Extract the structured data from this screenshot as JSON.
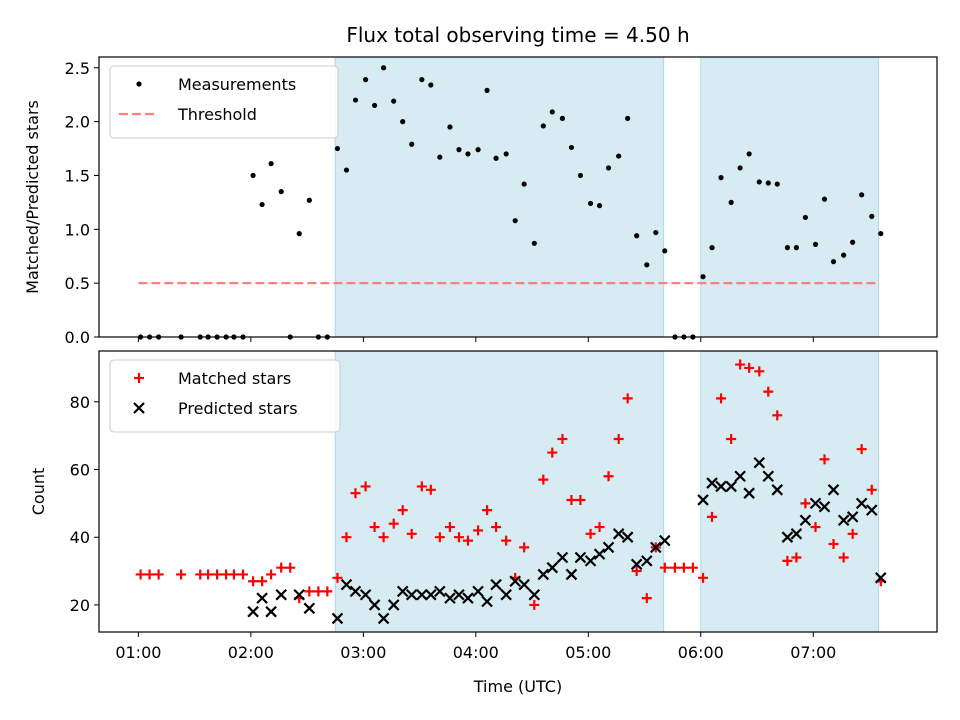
{
  "chart_data": [
    {
      "type": "scatter",
      "title": "Flux total observing time = 4.50 h",
      "xlabel": "",
      "ylabel": "Matched/Predicted stars",
      "xlim": [
        0.65,
        8.1
      ],
      "ylim": [
        0,
        2.6
      ],
      "yticks": [
        0.0,
        0.5,
        1.0,
        1.5,
        2.0,
        2.5
      ],
      "ytick_labels": [
        "0.0",
        "0.5",
        "1.0",
        "1.5",
        "2.0",
        "2.5"
      ],
      "legend_position": "top-left",
      "shaded_intervals": [
        [
          2.75,
          5.67
        ],
        [
          6.0,
          7.58
        ]
      ],
      "threshold": {
        "name": "Threshold",
        "y": 0.5,
        "x": [
          1.0,
          7.58
        ],
        "color": "#ff7f7f",
        "style": "dashed"
      },
      "series": [
        {
          "name": "Measurements",
          "color": "#000000",
          "marker": "dot",
          "points": [
            [
              1.02,
              0
            ],
            [
              1.1,
              0
            ],
            [
              1.18,
              0
            ],
            [
              1.38,
              0
            ],
            [
              1.55,
              0
            ],
            [
              1.62,
              0
            ],
            [
              1.7,
              0
            ],
            [
              1.78,
              0
            ],
            [
              1.85,
              0
            ],
            [
              1.93,
              0
            ],
            [
              2.02,
              1.5
            ],
            [
              2.1,
              1.23
            ],
            [
              2.18,
              1.61
            ],
            [
              2.27,
              1.35
            ],
            [
              2.35,
              0
            ],
            [
              2.43,
              0.96
            ],
            [
              2.52,
              1.27
            ],
            [
              2.6,
              0
            ],
            [
              2.68,
              0
            ],
            [
              2.77,
              1.75
            ],
            [
              2.85,
              1.55
            ],
            [
              2.93,
              2.2
            ],
            [
              3.02,
              2.39
            ],
            [
              3.1,
              2.15
            ],
            [
              3.18,
              2.5
            ],
            [
              3.27,
              2.19
            ],
            [
              3.35,
              2.0
            ],
            [
              3.43,
              1.79
            ],
            [
              3.52,
              2.39
            ],
            [
              3.6,
              2.34
            ],
            [
              3.68,
              1.67
            ],
            [
              3.77,
              1.95
            ],
            [
              3.85,
              1.74
            ],
            [
              3.93,
              1.7
            ],
            [
              4.02,
              1.74
            ],
            [
              4.1,
              2.29
            ],
            [
              4.18,
              1.66
            ],
            [
              4.27,
              1.7
            ],
            [
              4.35,
              1.08
            ],
            [
              4.43,
              1.42
            ],
            [
              4.52,
              0.87
            ],
            [
              4.6,
              1.96
            ],
            [
              4.68,
              2.09
            ],
            [
              4.77,
              2.03
            ],
            [
              4.85,
              1.76
            ],
            [
              4.93,
              1.5
            ],
            [
              5.02,
              1.24
            ],
            [
              5.1,
              1.22
            ],
            [
              5.18,
              1.57
            ],
            [
              5.27,
              1.68
            ],
            [
              5.35,
              2.03
            ],
            [
              5.43,
              0.94
            ],
            [
              5.52,
              0.67
            ],
            [
              5.6,
              0.97
            ],
            [
              5.68,
              0.8
            ],
            [
              5.77,
              0
            ],
            [
              5.85,
              0
            ],
            [
              5.93,
              0
            ],
            [
              6.02,
              0.56
            ],
            [
              6.1,
              0.83
            ],
            [
              6.18,
              1.48
            ],
            [
              6.27,
              1.25
            ],
            [
              6.35,
              1.57
            ],
            [
              6.43,
              1.7
            ],
            [
              6.52,
              1.44
            ],
            [
              6.6,
              1.43
            ],
            [
              6.68,
              1.42
            ],
            [
              6.77,
              0.83
            ],
            [
              6.85,
              0.83
            ],
            [
              6.93,
              1.11
            ],
            [
              7.02,
              0.86
            ],
            [
              7.1,
              1.28
            ],
            [
              7.18,
              0.7
            ],
            [
              7.27,
              0.76
            ],
            [
              7.35,
              0.88
            ],
            [
              7.43,
              1.32
            ],
            [
              7.52,
              1.12
            ],
            [
              7.6,
              0.96
            ]
          ]
        }
      ]
    },
    {
      "type": "scatter",
      "title": "",
      "xlabel": "Time (UTC)",
      "ylabel": "Count",
      "xlim": [
        0.65,
        8.1
      ],
      "ylim": [
        12,
        95
      ],
      "xticks": [
        1,
        2,
        3,
        4,
        5,
        6,
        7
      ],
      "xtick_labels": [
        "01:00",
        "02:00",
        "03:00",
        "04:00",
        "05:00",
        "06:00",
        "07:00"
      ],
      "yticks": [
        20,
        40,
        60,
        80
      ],
      "ytick_labels": [
        "20",
        "40",
        "60",
        "80"
      ],
      "legend_position": "top-left",
      "shaded_intervals": [
        [
          2.75,
          5.67
        ],
        [
          6.0,
          7.58
        ]
      ],
      "series": [
        {
          "name": "Matched stars",
          "color": "#ff0000",
          "marker": "plus",
          "points": [
            [
              1.02,
              29
            ],
            [
              1.1,
              29
            ],
            [
              1.18,
              29
            ],
            [
              1.38,
              29
            ],
            [
              1.55,
              29
            ],
            [
              1.62,
              29
            ],
            [
              1.7,
              29
            ],
            [
              1.78,
              29
            ],
            [
              1.85,
              29
            ],
            [
              1.93,
              29
            ],
            [
              2.02,
              27
            ],
            [
              2.1,
              27
            ],
            [
              2.18,
              29
            ],
            [
              2.27,
              31
            ],
            [
              2.35,
              31
            ],
            [
              2.43,
              22
            ],
            [
              2.52,
              24
            ],
            [
              2.6,
              24
            ],
            [
              2.68,
              24
            ],
            [
              2.77,
              28
            ],
            [
              2.85,
              40
            ],
            [
              2.93,
              53
            ],
            [
              3.02,
              55
            ],
            [
              3.1,
              43
            ],
            [
              3.18,
              40
            ],
            [
              3.27,
              44
            ],
            [
              3.35,
              48
            ],
            [
              3.43,
              41
            ],
            [
              3.52,
              55
            ],
            [
              3.6,
              54
            ],
            [
              3.68,
              40
            ],
            [
              3.77,
              43
            ],
            [
              3.85,
              40
            ],
            [
              3.93,
              39
            ],
            [
              4.02,
              42
            ],
            [
              4.1,
              48
            ],
            [
              4.18,
              43
            ],
            [
              4.27,
              39
            ],
            [
              4.35,
              28
            ],
            [
              4.43,
              37
            ],
            [
              4.52,
              20
            ],
            [
              4.6,
              57
            ],
            [
              4.68,
              65
            ],
            [
              4.77,
              69
            ],
            [
              4.85,
              51
            ],
            [
              4.93,
              51
            ],
            [
              5.02,
              41
            ],
            [
              5.1,
              43
            ],
            [
              5.18,
              58
            ],
            [
              5.27,
              69
            ],
            [
              5.35,
              81
            ],
            [
              5.43,
              30
            ],
            [
              5.52,
              22
            ],
            [
              5.6,
              37
            ],
            [
              5.68,
              31
            ],
            [
              5.77,
              31
            ],
            [
              5.85,
              31
            ],
            [
              5.93,
              31
            ],
            [
              6.02,
              28
            ],
            [
              6.1,
              46
            ],
            [
              6.18,
              81
            ],
            [
              6.27,
              69
            ],
            [
              6.35,
              91
            ],
            [
              6.43,
              90
            ],
            [
              6.52,
              89
            ],
            [
              6.6,
              83
            ],
            [
              6.68,
              76
            ],
            [
              6.77,
              33
            ],
            [
              6.85,
              34
            ],
            [
              6.93,
              50
            ],
            [
              7.02,
              43
            ],
            [
              7.1,
              63
            ],
            [
              7.18,
              38
            ],
            [
              7.27,
              34
            ],
            [
              7.35,
              41
            ],
            [
              7.43,
              66
            ],
            [
              7.52,
              54
            ],
            [
              7.6,
              27
            ]
          ]
        },
        {
          "name": "Predicted stars",
          "color": "#000000",
          "marker": "x",
          "points": [
            [
              2.02,
              18
            ],
            [
              2.1,
              22
            ],
            [
              2.18,
              18
            ],
            [
              2.27,
              23
            ],
            [
              2.43,
              23
            ],
            [
              2.52,
              19
            ],
            [
              2.77,
              16
            ],
            [
              2.85,
              26
            ],
            [
              2.93,
              24
            ],
            [
              3.02,
              23
            ],
            [
              3.1,
              20
            ],
            [
              3.18,
              16
            ],
            [
              3.27,
              20
            ],
            [
              3.35,
              24
            ],
            [
              3.43,
              23
            ],
            [
              3.52,
              23
            ],
            [
              3.6,
              23
            ],
            [
              3.68,
              24
            ],
            [
              3.77,
              22
            ],
            [
              3.85,
              23
            ],
            [
              3.93,
              22
            ],
            [
              4.02,
              24
            ],
            [
              4.1,
              21
            ],
            [
              4.18,
              26
            ],
            [
              4.27,
              23
            ],
            [
              4.35,
              27
            ],
            [
              4.43,
              26
            ],
            [
              4.52,
              23
            ],
            [
              4.6,
              29
            ],
            [
              4.68,
              31
            ],
            [
              4.77,
              34
            ],
            [
              4.85,
              29
            ],
            [
              4.93,
              34
            ],
            [
              5.02,
              33
            ],
            [
              5.1,
              35
            ],
            [
              5.18,
              37
            ],
            [
              5.27,
              41
            ],
            [
              5.35,
              40
            ],
            [
              5.43,
              32
            ],
            [
              5.52,
              33
            ],
            [
              5.6,
              37
            ],
            [
              5.68,
              39
            ],
            [
              6.02,
              51
            ],
            [
              6.1,
              56
            ],
            [
              6.18,
              55
            ],
            [
              6.27,
              55
            ],
            [
              6.35,
              58
            ],
            [
              6.43,
              53
            ],
            [
              6.52,
              62
            ],
            [
              6.6,
              58
            ],
            [
              6.68,
              54
            ],
            [
              6.77,
              40
            ],
            [
              6.85,
              41
            ],
            [
              6.93,
              45
            ],
            [
              7.02,
              50
            ],
            [
              7.1,
              49
            ],
            [
              7.18,
              54
            ],
            [
              7.27,
              45
            ],
            [
              7.35,
              46
            ],
            [
              7.43,
              50
            ],
            [
              7.52,
              48
            ],
            [
              7.6,
              28
            ]
          ]
        }
      ]
    }
  ]
}
